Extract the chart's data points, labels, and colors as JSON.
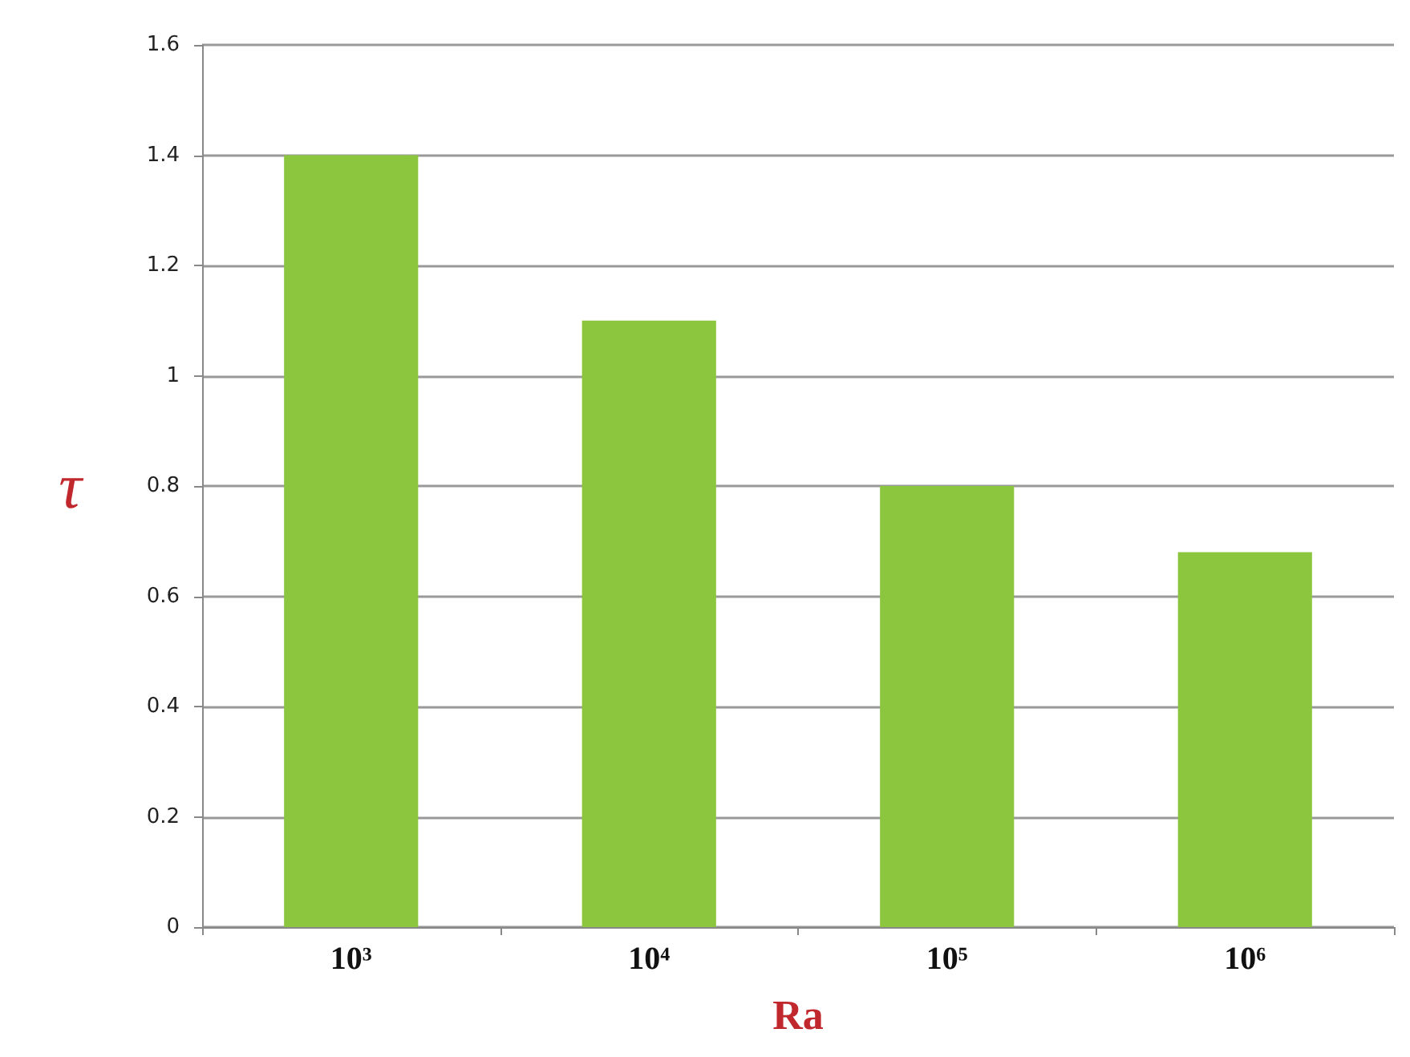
{
  "chart_data": {
    "type": "bar",
    "xlabel": "Ra",
    "ylabel": "τ",
    "categories": [
      "10³",
      "10⁴",
      "10⁵",
      "10⁶"
    ],
    "values": [
      1.4,
      1.1,
      0.8,
      0.68
    ],
    "color": "#8cc63f",
    "ylim": [
      0,
      1.6
    ],
    "yticks": [
      0,
      0.2,
      0.4,
      0.6,
      0.8,
      1,
      1.2,
      1.4,
      1.6
    ],
    "grid": "y"
  }
}
